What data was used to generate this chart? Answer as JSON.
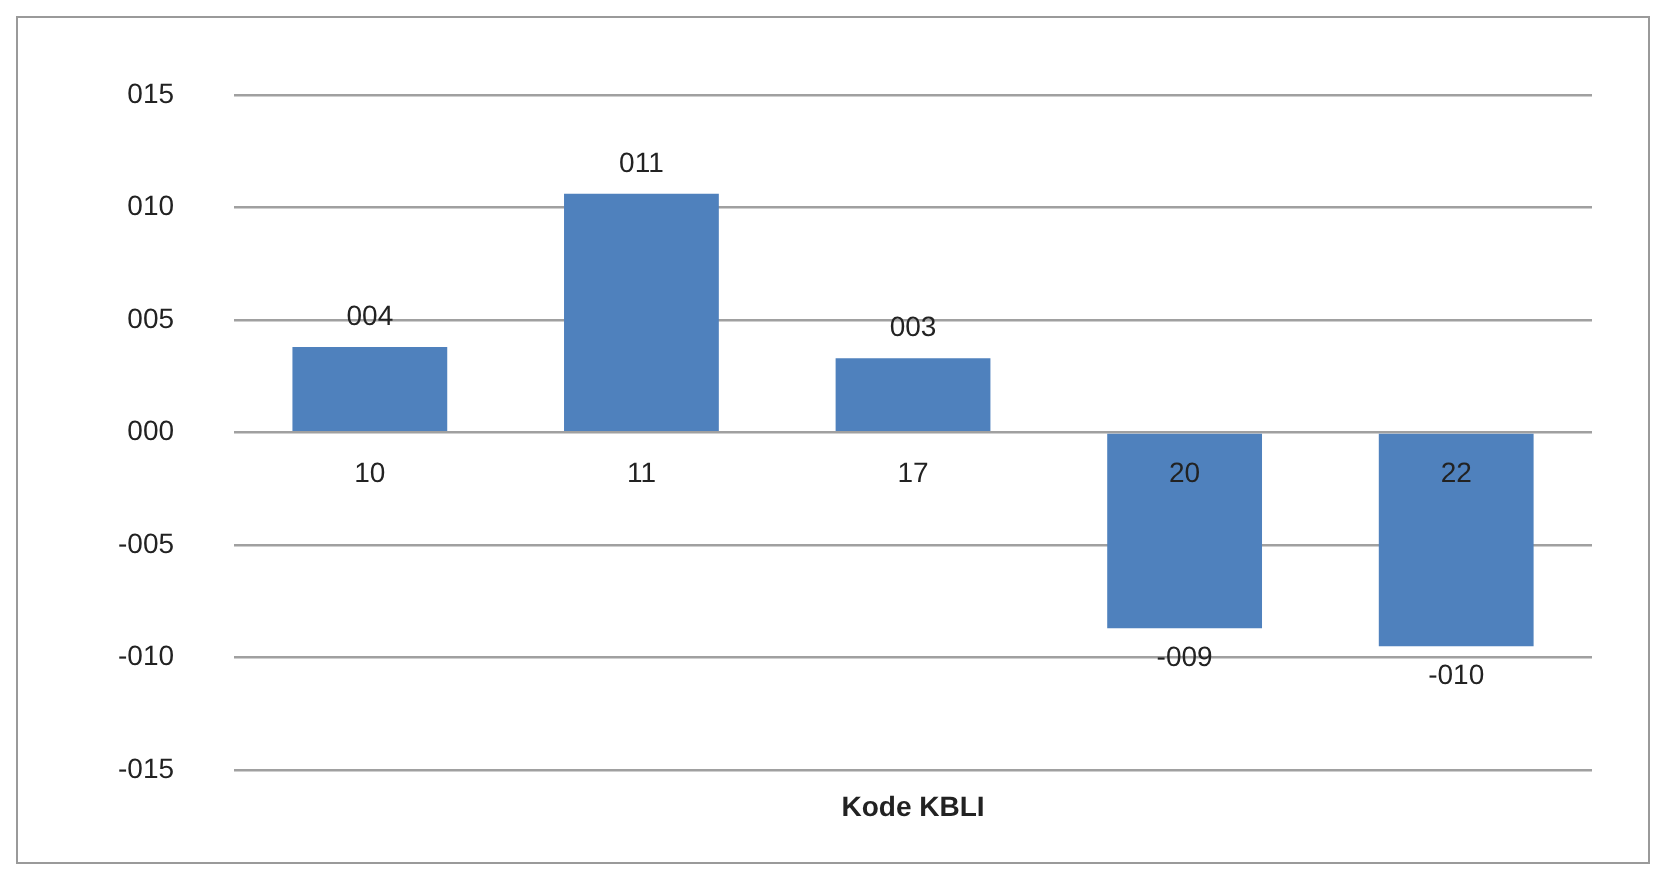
{
  "chart_data": {
    "type": "bar",
    "xlabel": "Kode KBLI",
    "categories": [
      "10",
      "11",
      "17",
      "20",
      "22"
    ],
    "values": [
      3.8,
      10.6,
      3.3,
      -8.7,
      -9.5
    ],
    "value_labels": [
      "004",
      "011",
      "003",
      "-009",
      "-010"
    ],
    "color": "#4f81bd",
    "ylim": [
      -15,
      15
    ],
    "yticks": [
      {
        "value": -15,
        "label": "-015"
      },
      {
        "value": -10,
        "label": "-010"
      },
      {
        "value": -5,
        "label": "-005"
      },
      {
        "value": 0,
        "label": "000"
      },
      {
        "value": 5,
        "label": "005"
      },
      {
        "value": 10,
        "label": "010"
      },
      {
        "value": 15,
        "label": "015"
      }
    ],
    "grid": "y",
    "legend": false
  }
}
